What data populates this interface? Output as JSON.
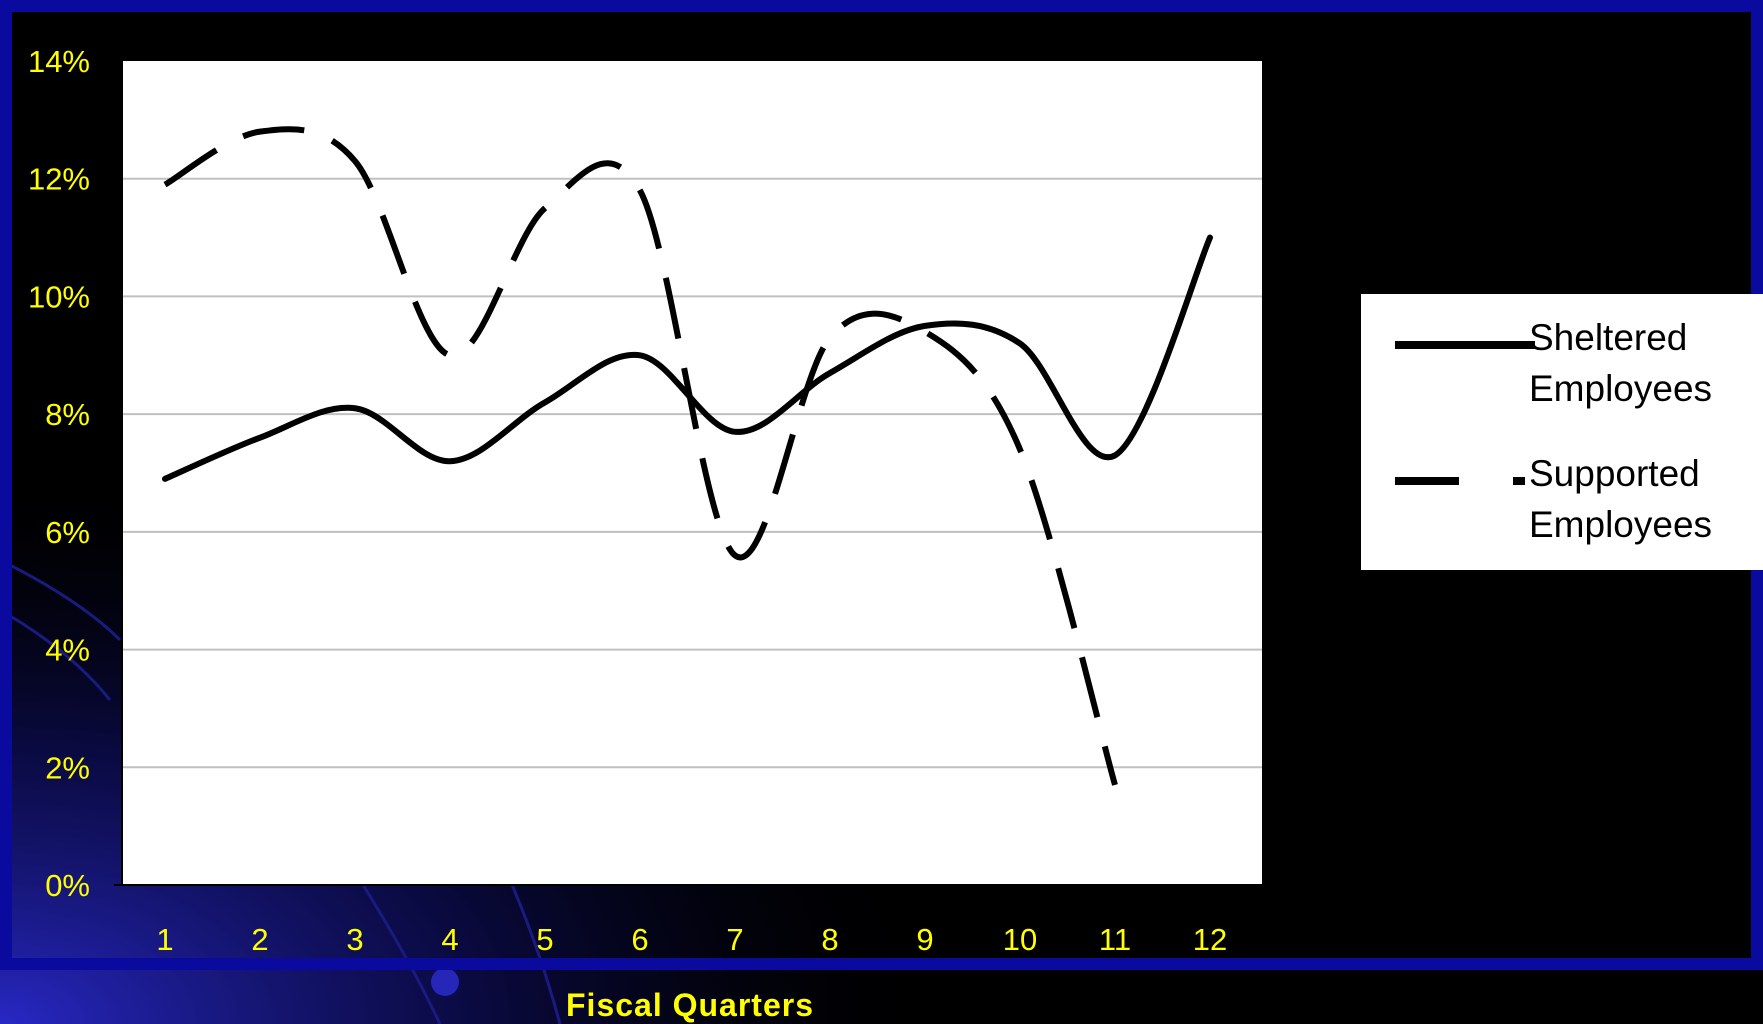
{
  "theme": {
    "background": "#000000",
    "frame_color": "#0a0a9e",
    "plot_background": "#ffffff",
    "gridline_color": "#c0c0c0",
    "tick_label_color": "#ffff00",
    "line_color": "#000000"
  },
  "chart_data": {
    "type": "line",
    "title": "",
    "xlabel": "Fiscal Quarters",
    "ylabel": "",
    "categories": [
      "1",
      "2",
      "3",
      "4",
      "5",
      "6",
      "7",
      "8",
      "9",
      "10",
      "11",
      "12"
    ],
    "y_ticks": [
      "0%",
      "2%",
      "4%",
      "6%",
      "8%",
      "10%",
      "12%",
      "14%"
    ],
    "ylim": [
      0,
      14
    ],
    "grid": true,
    "legend_position": "right",
    "series": [
      {
        "name": "Sheltered Employees",
        "style": "solid",
        "values": [
          6.9,
          7.6,
          8.1,
          7.2,
          8.2,
          9.0,
          7.7,
          8.7,
          9.5,
          9.2,
          7.3,
          11.0
        ]
      },
      {
        "name": "Supported Employees",
        "style": "dashed",
        "values": [
          11.9,
          12.8,
          12.3,
          9.0,
          11.5,
          11.8,
          5.6,
          9.3,
          9.4,
          7.4,
          1.7,
          null
        ]
      }
    ]
  },
  "legend": {
    "items": [
      {
        "label": "Sheltered\nEmployees",
        "style": "solid"
      },
      {
        "label": "Supported\nEmployees",
        "style": "dashed"
      }
    ]
  }
}
